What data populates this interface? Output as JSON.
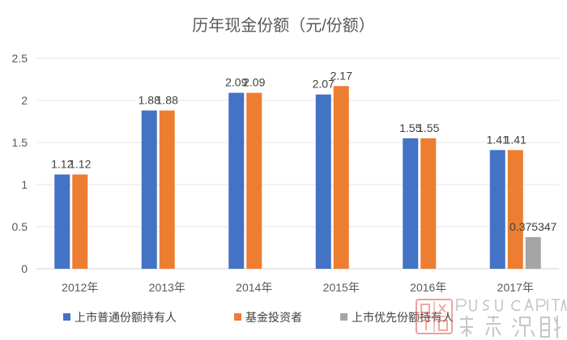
{
  "chart_data": {
    "type": "bar",
    "title": "历年现金份额（元/份额）",
    "xlabel": "",
    "ylabel": "",
    "categories": [
      "2012年",
      "2013年",
      "2014年",
      "2015年",
      "2016年",
      "2017年"
    ],
    "series": [
      {
        "name": "上市普通份额持有人",
        "values": [
          1.12,
          1.88,
          2.09,
          2.07,
          1.55,
          1.41
        ],
        "labels": [
          "1.12",
          "1.88",
          "2.09",
          "2.07",
          "1.55",
          "1.41"
        ],
        "color": "#4472C4"
      },
      {
        "name": "基金投资者",
        "values": [
          1.12,
          1.88,
          2.09,
          2.17,
          1.55,
          1.41
        ],
        "labels": [
          "1.12",
          "1.88",
          "2.09",
          "2.17",
          "1.55",
          "1.41"
        ],
        "color": "#ED7D31"
      },
      {
        "name": "上市优先份额持有人",
        "values": [
          null,
          null,
          null,
          null,
          null,
          0.375347
        ],
        "labels": [
          "",
          "",
          "",
          "",
          "",
          "0.375347"
        ],
        "color": "#A5A5A5"
      }
    ],
    "yticks": [
      "0",
      "0.5",
      "1",
      "1.5",
      "2",
      "2.5"
    ],
    "ylim": [
      0,
      2.5
    ],
    "grid": true,
    "legend": "bottom"
  },
  "watermark": {
    "logo_lettering": "PUSU CAPITAL 璞素资本"
  }
}
